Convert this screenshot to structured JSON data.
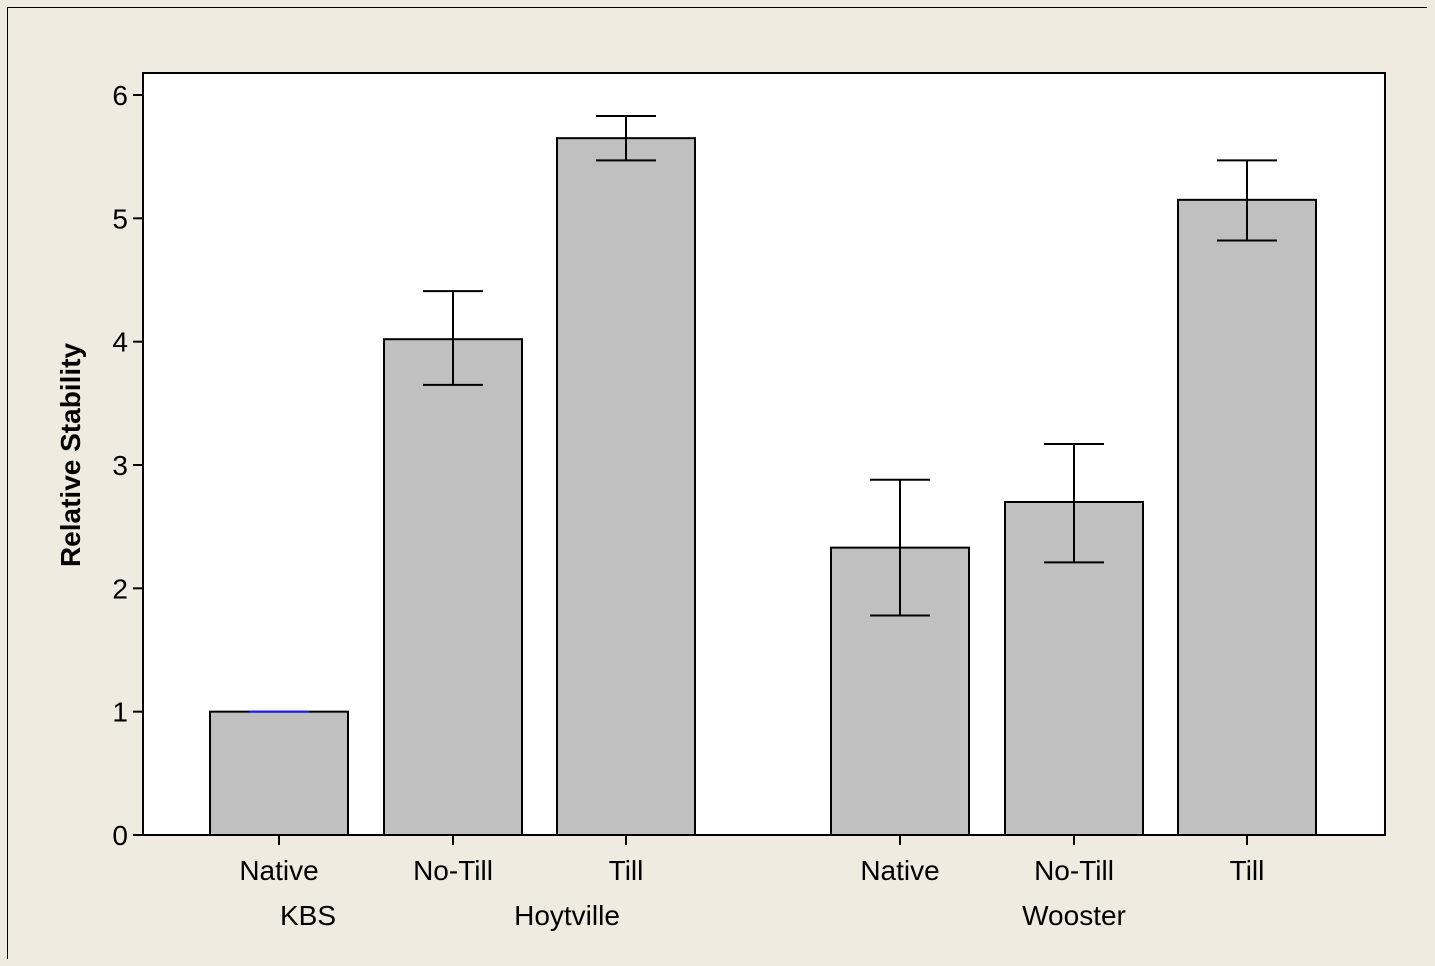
{
  "chart_data": {
    "type": "bar",
    "xlabel": "",
    "ylabel": "Relative Stability",
    "ylim": [
      0,
      6.2
    ],
    "yticks": [
      "0",
      "1",
      "2",
      "3",
      "4",
      "5",
      "6"
    ],
    "grid": false,
    "colors": {
      "bar_fill": "#c0c0c0",
      "bar_stroke": "#000000",
      "background": "#efebe1",
      "plot_bg": "#ffffff",
      "highlight": "#1a1aff"
    },
    "groups": [
      {
        "name": "KBS",
        "categories": [
          "Native"
        ]
      },
      {
        "name": "Hoytville",
        "categories": [
          "No-Till",
          "Till"
        ]
      },
      {
        "name": "Wooster",
        "categories": [
          "Native",
          "No-Till",
          "Till"
        ]
      }
    ],
    "categories": [
      "Native",
      "No-Till",
      "Till",
      "Native",
      "No-Till",
      "Till"
    ],
    "values": [
      1.0,
      4.02,
      5.65,
      2.33,
      2.7,
      5.15
    ],
    "error_low": [
      1.0,
      3.65,
      5.47,
      1.78,
      2.21,
      4.82
    ],
    "error_high": [
      1.0,
      4.41,
      5.83,
      2.88,
      3.17,
      5.47
    ]
  }
}
